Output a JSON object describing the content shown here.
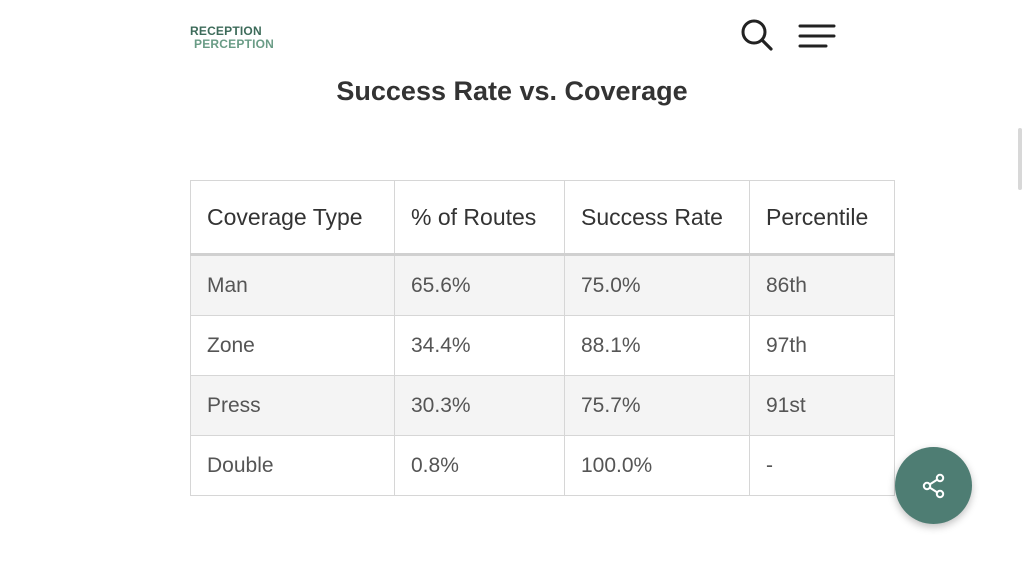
{
  "header": {
    "logo": {
      "line1": "RECEPTION",
      "line2": "PERCEPTION"
    },
    "icons": {
      "search": "search-icon",
      "menu": "hamburger-menu-icon"
    }
  },
  "title": "Success Rate vs. Coverage",
  "table": {
    "columns": [
      "Coverage Type",
      "% of Routes",
      "Success Rate",
      "Percentile"
    ],
    "rows": [
      [
        "Man",
        "65.6%",
        "75.0%",
        "86th"
      ],
      [
        "Zone",
        "34.4%",
        "88.1%",
        "97th"
      ],
      [
        "Press",
        "30.3%",
        "75.7%",
        "91st"
      ],
      [
        "Double",
        "0.8%",
        "100.0%",
        "-"
      ]
    ]
  },
  "share": {
    "icon": "share-icon",
    "color": "#4e7d73"
  }
}
